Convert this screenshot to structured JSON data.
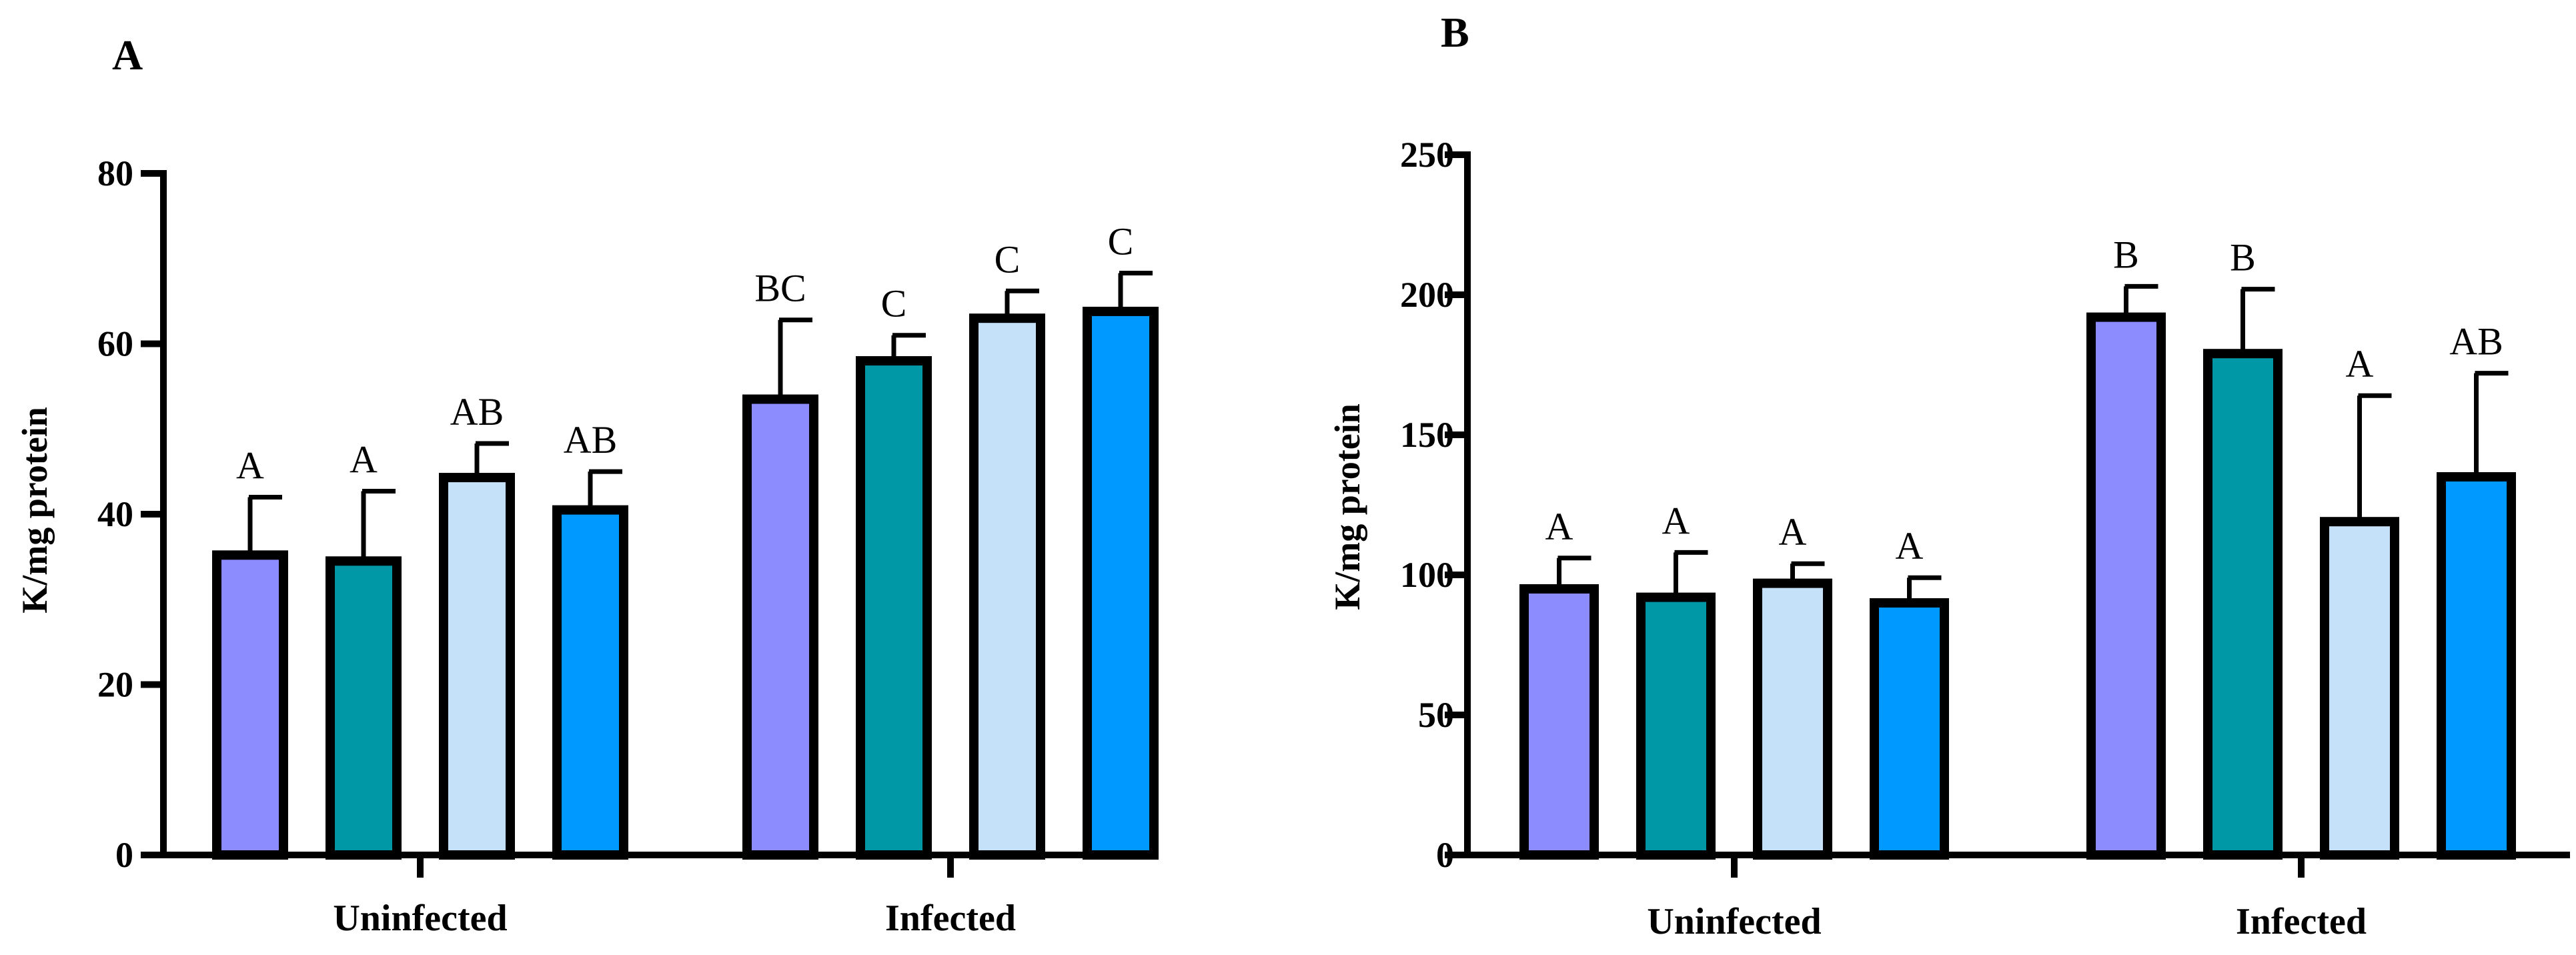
{
  "colors": [
    "#8C8CFF",
    "#0097A7",
    "#C5E1FA",
    "#0099FF"
  ],
  "chart_data": [
    {
      "type": "bar",
      "panel": "A",
      "ylabel": "K/mg protein",
      "ylim": [
        0,
        80
      ],
      "yticks": [
        0,
        20,
        40,
        60,
        80
      ],
      "categories": [
        "Uninfected",
        "Infected"
      ],
      "series": [
        {
          "values": [
            35.2,
            53.5
          ],
          "errors": [
            6.8,
            9.3
          ],
          "labels": [
            "A",
            "BC"
          ]
        },
        {
          "values": [
            34.5,
            58.0
          ],
          "errors": [
            8.2,
            3.0
          ],
          "labels": [
            "A",
            "C"
          ]
        },
        {
          "values": [
            44.3,
            63.0
          ],
          "errors": [
            4.0,
            3.2
          ],
          "labels": [
            "AB",
            "C"
          ]
        },
        {
          "values": [
            40.5,
            63.8
          ],
          "errors": [
            4.5,
            4.5
          ],
          "labels": [
            "AB",
            "C"
          ]
        }
      ]
    },
    {
      "type": "bar",
      "panel": "B",
      "ylabel": "K/mg protein",
      "ylim": [
        0,
        250
      ],
      "yticks": [
        0,
        50,
        100,
        150,
        200,
        250
      ],
      "categories": [
        "Uninfected",
        "Infected"
      ],
      "series": [
        {
          "values": [
            95,
            192
          ],
          "errors": [
            11,
            11
          ],
          "labels": [
            "A",
            "B"
          ]
        },
        {
          "values": [
            92,
            179
          ],
          "errors": [
            16,
            23
          ],
          "labels": [
            "A",
            "B"
          ]
        },
        {
          "values": [
            97,
            119
          ],
          "errors": [
            7,
            45
          ],
          "labels": [
            "A",
            "A"
          ]
        },
        {
          "values": [
            90,
            135
          ],
          "errors": [
            9,
            37
          ],
          "labels": [
            "A",
            "AB"
          ]
        }
      ]
    }
  ]
}
